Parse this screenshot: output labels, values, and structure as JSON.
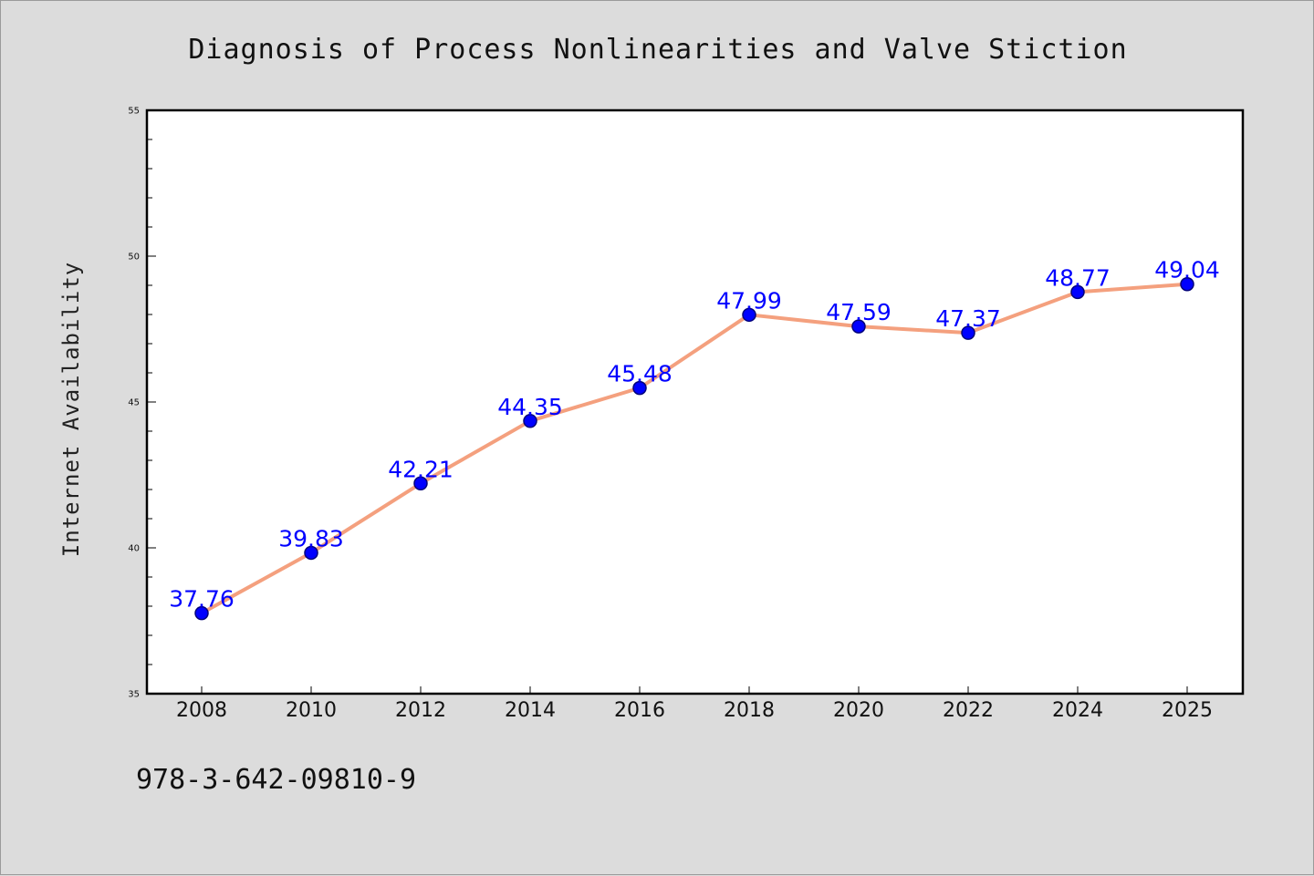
{
  "chart_data": {
    "type": "line",
    "title": "Diagnosis of Process Nonlinearities and Valve Stiction",
    "xlabel": "",
    "ylabel": "Internet Availability",
    "categories": [
      "2008",
      "2010",
      "2012",
      "2014",
      "2016",
      "2018",
      "2020",
      "2022",
      "2024",
      "2025"
    ],
    "series": [
      {
        "values": [
          37.76,
          39.83,
          42.21,
          44.35,
          45.48,
          47.99,
          47.59,
          47.37,
          48.77,
          49.04
        ],
        "labels": [
          "37.76",
          "39.83",
          "42.21",
          "44.35",
          "45.48",
          "47.99",
          "47.59",
          "47.37",
          "48.77",
          "49.04"
        ]
      }
    ],
    "ylim": [
      35,
      55
    ],
    "yticks": [
      "35",
      "40",
      "45",
      "50",
      "55"
    ],
    "grid": false,
    "legend": "none",
    "colors": {
      "line": "#f4a07e",
      "marker_fill": "#0000ff",
      "marker_edge": "#00007a",
      "data_label": "#0000ff",
      "background": "#dcdcdc",
      "plot_background": "#ffffff"
    }
  },
  "footer": {
    "isbn": "978-3-642-09810-9"
  }
}
